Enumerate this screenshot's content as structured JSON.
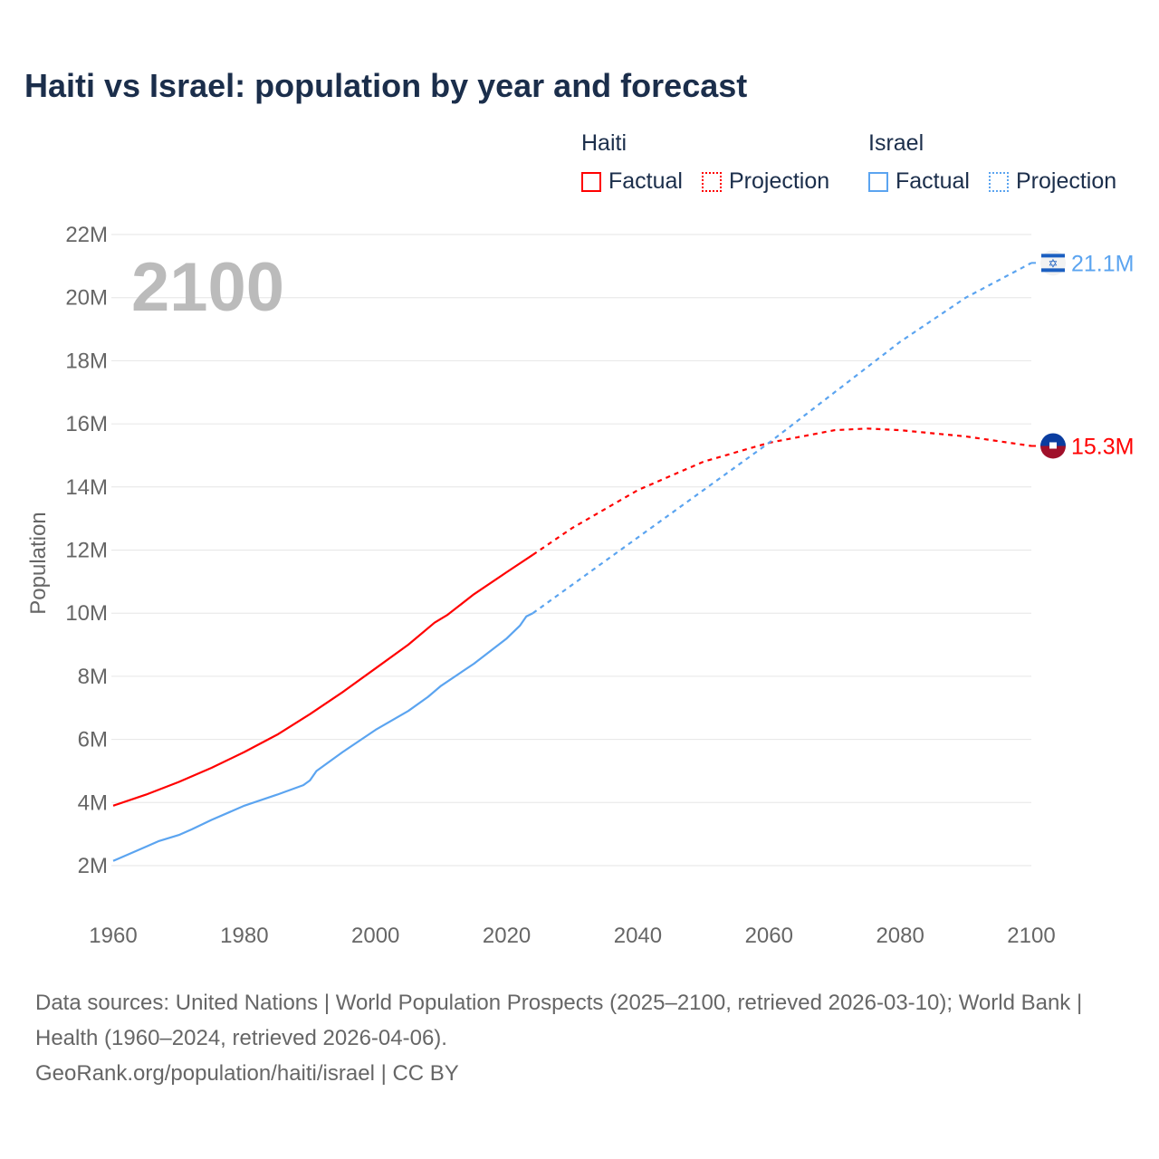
{
  "title": "Haiti vs Israel: population by year and forecast",
  "legend": {
    "groups": [
      {
        "name": "Haiti",
        "color": "#ff0000",
        "factual": "Factual",
        "projection": "Projection"
      },
      {
        "name": "Israel",
        "color": "#5ba4f0",
        "factual": "Factual",
        "projection": "Projection"
      }
    ]
  },
  "chart_data": {
    "type": "line",
    "title": "Haiti vs Israel: population by year and forecast",
    "xlabel": "",
    "ylabel": "Population",
    "xlim": [
      1960,
      2100
    ],
    "ylim": [
      2,
      22
    ],
    "x_ticks": [
      "1960",
      "1980",
      "2000",
      "2020",
      "2040",
      "2060",
      "2080",
      "2100"
    ],
    "y_ticks": [
      "2M",
      "4M",
      "6M",
      "8M",
      "10M",
      "12M",
      "14M",
      "16M",
      "18M",
      "20M",
      "22M"
    ],
    "year_watermark": "2100",
    "units": "millions",
    "series": [
      {
        "name": "Haiti Factual",
        "color": "#ff0000",
        "dashed": false,
        "x": [
          1960,
          1965,
          1970,
          1975,
          1980,
          1985,
          1990,
          1995,
          2000,
          2005,
          2009,
          2011,
          2015,
          2020,
          2024
        ],
        "y": [
          3.9,
          4.25,
          4.65,
          5.1,
          5.6,
          6.15,
          6.8,
          7.5,
          8.25,
          9.0,
          9.7,
          9.95,
          10.6,
          11.3,
          11.85
        ]
      },
      {
        "name": "Haiti Projection",
        "color": "#ff0000",
        "dashed": true,
        "x": [
          2024,
          2030,
          2040,
          2050,
          2060,
          2070,
          2075,
          2080,
          2090,
          2100
        ],
        "y": [
          11.85,
          12.7,
          13.9,
          14.8,
          15.4,
          15.8,
          15.85,
          15.8,
          15.6,
          15.3
        ]
      },
      {
        "name": "Israel Factual",
        "color": "#5ba4f0",
        "dashed": false,
        "x": [
          1960,
          1965,
          1967,
          1970,
          1972,
          1975,
          1980,
          1985,
          1989,
          1990,
          1991,
          1995,
          2000,
          2005,
          2008,
          2010,
          2015,
          2020,
          2022,
          2023,
          2024
        ],
        "y": [
          2.15,
          2.6,
          2.78,
          2.97,
          3.15,
          3.45,
          3.9,
          4.25,
          4.55,
          4.7,
          5.0,
          5.6,
          6.3,
          6.9,
          7.35,
          7.7,
          8.4,
          9.2,
          9.6,
          9.9,
          10.0
        ]
      },
      {
        "name": "Israel Projection",
        "color": "#5ba4f0",
        "dashed": true,
        "x": [
          2024,
          2030,
          2040,
          2050,
          2060,
          2070,
          2080,
          2090,
          2100
        ],
        "y": [
          10.0,
          10.9,
          12.4,
          13.9,
          15.4,
          17.0,
          18.6,
          20.0,
          21.1
        ]
      }
    ],
    "end_labels": [
      {
        "country": "Israel",
        "label": "21.1M",
        "value": 21.1,
        "color": "#5ba4f0"
      },
      {
        "country": "Haiti",
        "label": "15.3M",
        "value": 15.3,
        "color": "#ff0000"
      }
    ]
  },
  "footer": {
    "line1": "Data sources: United Nations | World Population Prospects (2025–2100, retrieved 2026-03-10); World Bank | Health (1960–2024, retrieved 2026-04-06).",
    "line2": "GeoRank.org/population/haiti/israel | CC BY"
  }
}
